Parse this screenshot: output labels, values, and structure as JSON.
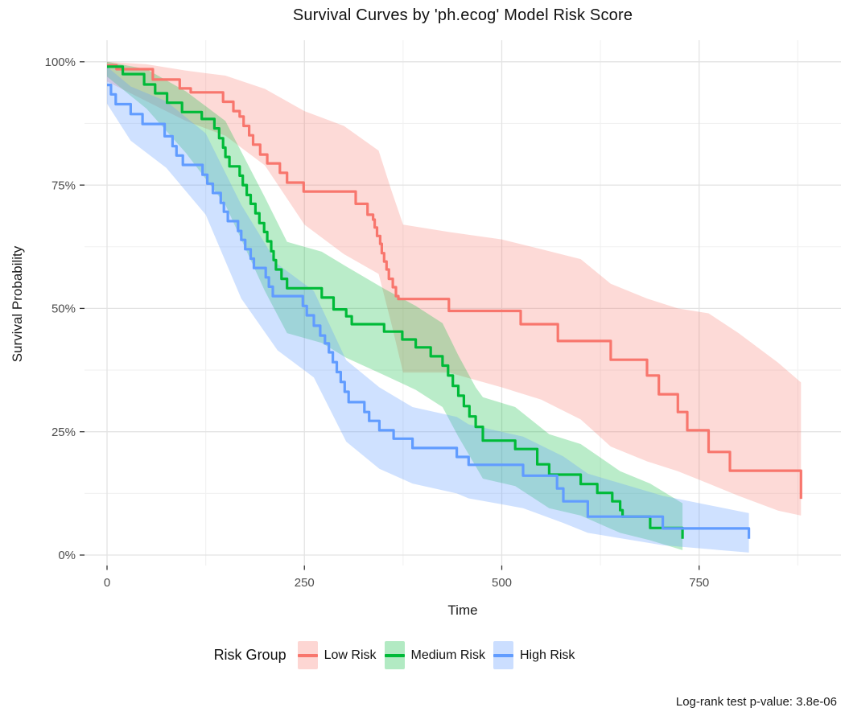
{
  "chart_data": {
    "type": "line",
    "subtype": "kaplan-meier-step-curves-with-confidence-bands",
    "title": "Survival Curves by 'ph.ecog' Model Risk Score",
    "footnote": "Log-rank test p-value: 3.8e-06",
    "legend_title": "Risk Group",
    "x_axis": {
      "label": "Time",
      "ticks": [
        0,
        250,
        500,
        750
      ],
      "tick_labels": [
        "0",
        "250",
        "500",
        "750"
      ],
      "minor_ticks": [
        125,
        375,
        625,
        875
      ],
      "range": [
        -28,
        930
      ]
    },
    "y_axis": {
      "label": "Survival Probability",
      "ticks": [
        0,
        25,
        50,
        75,
        100
      ],
      "tick_labels": [
        "0%",
        "25%",
        "50%",
        "75%",
        "100%"
      ],
      "minor_ticks": [
        12.5,
        37.5,
        62.5,
        87.5
      ],
      "range": [
        -2,
        104
      ],
      "unit": "percent"
    },
    "grid": {
      "major_color": "#E3E3E3",
      "minor_color": "#F1F1F1",
      "tick_color": "#333333",
      "tick_label_color": "#4D4D4D"
    },
    "series": [
      {
        "id": "low-risk",
        "name": "Low Risk",
        "color": "#F8766D",
        "fill_opacity": 0.27,
        "line_width": 3.2,
        "steps": [
          [
            0,
            99.3
          ],
          [
            12,
            98.5
          ],
          [
            58,
            96.4
          ],
          [
            92,
            94.6
          ],
          [
            106,
            93.8
          ],
          [
            147,
            91.9
          ],
          [
            160,
            90.0
          ],
          [
            168,
            88.9
          ],
          [
            173,
            87.0
          ],
          [
            180,
            85.1
          ],
          [
            185,
            83.2
          ],
          [
            194,
            81.2
          ],
          [
            203,
            79.4
          ],
          [
            219,
            77.5
          ],
          [
            228,
            75.5
          ],
          [
            249,
            73.7
          ],
          [
            315,
            71.2
          ],
          [
            330,
            69.0
          ],
          [
            337,
            68.0
          ],
          [
            339,
            66.4
          ],
          [
            342,
            64.7
          ],
          [
            346,
            63.1
          ],
          [
            348,
            61.2
          ],
          [
            351,
            59.5
          ],
          [
            354,
            57.9
          ],
          [
            357,
            56.0
          ],
          [
            362,
            54.3
          ],
          [
            366,
            52.5
          ],
          [
            369,
            51.9
          ],
          [
            433,
            49.5
          ],
          [
            524,
            46.8
          ],
          [
            571,
            43.4
          ],
          [
            638,
            39.6
          ],
          [
            684,
            36.4
          ],
          [
            699,
            32.6
          ],
          [
            723,
            29.0
          ],
          [
            735,
            25.3
          ],
          [
            762,
            20.9
          ],
          [
            789,
            17.1
          ],
          [
            879,
            11.4
          ]
        ],
        "ci": [
          [
            0,
            96,
            100
          ],
          [
            50,
            92,
            99.5
          ],
          [
            100,
            88,
            98.2
          ],
          [
            150,
            85,
            97.2
          ],
          [
            200,
            79,
            94.5
          ],
          [
            250,
            67,
            90
          ],
          [
            300,
            61,
            87
          ],
          [
            344,
            57,
            82
          ],
          [
            360,
            47,
            74
          ],
          [
            375,
            37,
            67
          ],
          [
            433,
            37,
            65.5
          ],
          [
            500,
            34,
            64
          ],
          [
            550,
            31.5,
            62
          ],
          [
            600,
            27.5,
            60
          ],
          [
            638,
            22,
            55
          ],
          [
            684,
            19,
            52
          ],
          [
            723,
            17,
            50
          ],
          [
            762,
            14.5,
            49
          ],
          [
            800,
            12,
            45
          ],
          [
            850,
            9,
            39
          ],
          [
            879,
            8,
            35
          ]
        ]
      },
      {
        "id": "medium-risk",
        "name": "Medium Risk",
        "color": "#00BA38",
        "fill_opacity": 0.27,
        "line_width": 3.2,
        "steps": [
          [
            0,
            99.0
          ],
          [
            20,
            97.5
          ],
          [
            47,
            95.4
          ],
          [
            61,
            93.6
          ],
          [
            76,
            91.7
          ],
          [
            95,
            89.8
          ],
          [
            120,
            88.4
          ],
          [
            136,
            86.5
          ],
          [
            142,
            84.5
          ],
          [
            147,
            82.6
          ],
          [
            150,
            80.7
          ],
          [
            155,
            78.8
          ],
          [
            168,
            76.9
          ],
          [
            172,
            75.0
          ],
          [
            177,
            73.0
          ],
          [
            182,
            71.2
          ],
          [
            188,
            69.3
          ],
          [
            193,
            67.3
          ],
          [
            199,
            65.5
          ],
          [
            203,
            63.6
          ],
          [
            208,
            61.6
          ],
          [
            211,
            59.8
          ],
          [
            214,
            57.9
          ],
          [
            221,
            56.0
          ],
          [
            228,
            54.1
          ],
          [
            272,
            52.2
          ],
          [
            287,
            49.8
          ],
          [
            303,
            48.4
          ],
          [
            310,
            46.8
          ],
          [
            351,
            45.3
          ],
          [
            374,
            43.7
          ],
          [
            391,
            42.1
          ],
          [
            410,
            40.3
          ],
          [
            425,
            38.4
          ],
          [
            432,
            36.4
          ],
          [
            438,
            34.3
          ],
          [
            445,
            32.3
          ],
          [
            452,
            30.2
          ],
          [
            459,
            28.1
          ],
          [
            467,
            26.0
          ],
          [
            476,
            23.2
          ],
          [
            517,
            21.5
          ],
          [
            545,
            18.4
          ],
          [
            560,
            16.3
          ],
          [
            600,
            14.4
          ],
          [
            621,
            12.6
          ],
          [
            640,
            10.9
          ],
          [
            650,
            9.1
          ],
          [
            653,
            7.8
          ],
          [
            688,
            5.5
          ],
          [
            729,
            3.3
          ]
        ],
        "ci": [
          [
            0,
            97,
            100
          ],
          [
            50,
            90.5,
            98.5
          ],
          [
            100,
            81.5,
            94
          ],
          [
            150,
            71,
            88
          ],
          [
            200,
            53.5,
            72.5
          ],
          [
            228,
            45,
            63.5
          ],
          [
            272,
            43,
            61.5
          ],
          [
            303,
            40,
            58.5
          ],
          [
            351,
            36.5,
            54
          ],
          [
            391,
            33.5,
            50.5
          ],
          [
            425,
            30,
            47
          ],
          [
            445,
            24,
            40.5
          ],
          [
            467,
            18,
            34
          ],
          [
            476,
            15.5,
            32
          ],
          [
            517,
            14,
            30
          ],
          [
            560,
            9.5,
            24.5
          ],
          [
            600,
            8,
            22.5
          ],
          [
            650,
            4.5,
            17
          ],
          [
            688,
            3,
            14.5
          ],
          [
            729,
            1,
            10.5
          ]
        ]
      },
      {
        "id": "high-risk",
        "name": "High Risk",
        "color": "#619CFF",
        "fill_opacity": 0.3,
        "line_width": 3.2,
        "steps": [
          [
            0,
            95.3
          ],
          [
            5,
            93.4
          ],
          [
            11,
            91.4
          ],
          [
            30,
            89.4
          ],
          [
            45,
            87.4
          ],
          [
            73,
            84.9
          ],
          [
            83,
            82.9
          ],
          [
            88,
            81.0
          ],
          [
            96,
            79.1
          ],
          [
            121,
            77.1
          ],
          [
            127,
            75.3
          ],
          [
            134,
            73.4
          ],
          [
            144,
            71.4
          ],
          [
            148,
            69.6
          ],
          [
            153,
            67.7
          ],
          [
            166,
            65.7
          ],
          [
            170,
            63.9
          ],
          [
            175,
            62.0
          ],
          [
            182,
            60.1
          ],
          [
            186,
            58.2
          ],
          [
            201,
            56.3
          ],
          [
            205,
            54.4
          ],
          [
            210,
            52.5
          ],
          [
            248,
            50.5
          ],
          [
            253,
            48.6
          ],
          [
            262,
            46.5
          ],
          [
            270,
            44.5
          ],
          [
            276,
            42.9
          ],
          [
            281,
            41.1
          ],
          [
            286,
            39.1
          ],
          [
            291,
            37.1
          ],
          [
            296,
            35.1
          ],
          [
            301,
            33.1
          ],
          [
            306,
            31.0
          ],
          [
            326,
            29.0
          ],
          [
            332,
            27.2
          ],
          [
            345,
            25.3
          ],
          [
            363,
            23.6
          ],
          [
            387,
            21.7
          ],
          [
            443,
            19.9
          ],
          [
            458,
            18.3
          ],
          [
            527,
            16.1
          ],
          [
            570,
            13.5
          ],
          [
            578,
            10.9
          ],
          [
            609,
            7.8
          ],
          [
            704,
            5.4
          ],
          [
            813,
            3.3
          ]
        ],
        "ci": [
          [
            0,
            91.5,
            99
          ],
          [
            30,
            84,
            95
          ],
          [
            75,
            78.5,
            92
          ],
          [
            125,
            69,
            85.5
          ],
          [
            170,
            52,
            71
          ],
          [
            216,
            41.5,
            59
          ],
          [
            262,
            36,
            53.5
          ],
          [
            303,
            23,
            39.5
          ],
          [
            345,
            17.5,
            34
          ],
          [
            387,
            14.5,
            30
          ],
          [
            443,
            12.5,
            28
          ],
          [
            458,
            11.5,
            26.5
          ],
          [
            527,
            9.5,
            24
          ],
          [
            578,
            6.5,
            20
          ],
          [
            609,
            4.5,
            16.5
          ],
          [
            704,
            2,
            12
          ],
          [
            813,
            0.5,
            8.5
          ]
        ]
      }
    ]
  }
}
